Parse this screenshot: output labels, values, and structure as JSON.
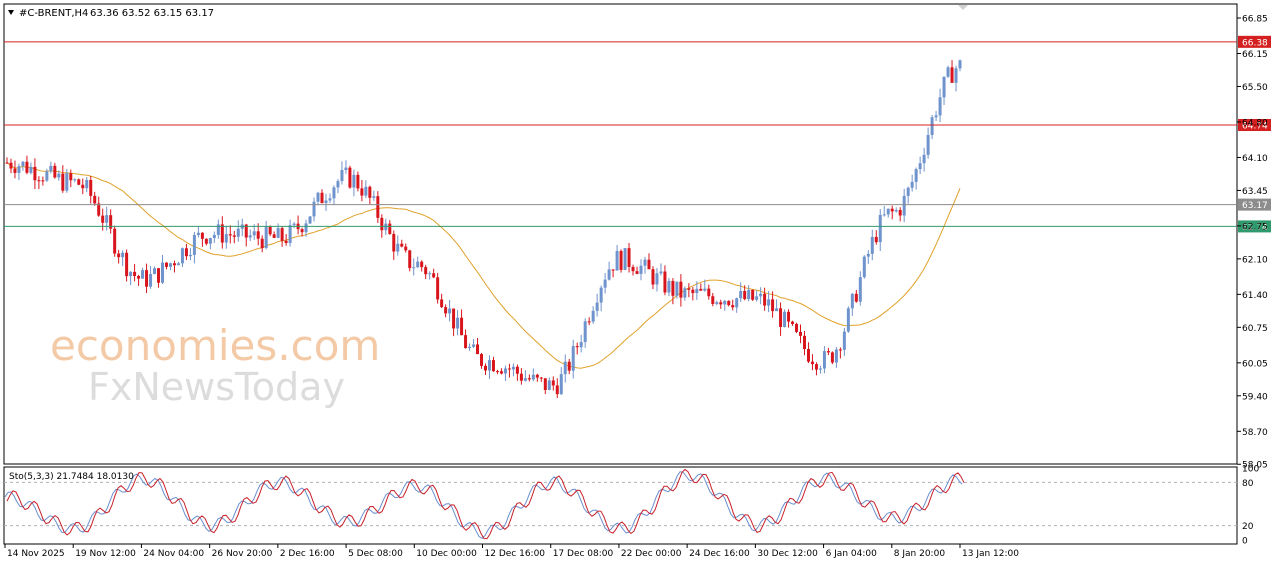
{
  "header": {
    "symbol": "#C-BRENT,H4",
    "ohlc": "63.36 63.52 63.15 63.17"
  },
  "watermark": {
    "line1": "economies.com",
    "line2": "FxNewsToday"
  },
  "price_axis": {
    "ticks": [
      "66.85",
      "66.15",
      "65.50",
      "64.80",
      "64.10",
      "63.45",
      "62.75",
      "62.10",
      "61.40",
      "60.75",
      "60.05",
      "59.40",
      "58.70",
      "58.05"
    ]
  },
  "time_axis": {
    "labels": [
      "14 Nov 2025",
      "19 Nov 12:00",
      "24 Nov 04:00",
      "26 Nov 20:00",
      "2 Dec 16:00",
      "5 Dec 08:00",
      "10 Dec 00:00",
      "12 Dec 16:00",
      "17 Dec 08:00",
      "22 Dec 00:00",
      "24 Dec 16:00",
      "30 Dec 12:00",
      "6 Jan 04:00",
      "8 Jan 20:00",
      "13 Jan 12:00"
    ]
  },
  "colors": {
    "bull": "#6f93cc",
    "bear": "#d8151d",
    "ma": "#e0a12a",
    "resistance": "#d42020",
    "support": "#2f9a6b",
    "current": "#8c8c8c",
    "stoch_main": "#6a8fd0",
    "stoch_signal": "#c8202a"
  },
  "levels": [
    {
      "label": "66.38",
      "price": 66.38,
      "kind": "resistance"
    },
    {
      "label": "64.74",
      "price": 64.74,
      "kind": "resistance"
    },
    {
      "label": "63.17",
      "price": 63.17,
      "kind": "current"
    },
    {
      "label": "62.74",
      "price": 62.74,
      "kind": "support"
    }
  ],
  "stochastic": {
    "title": "Sto(5,3,3) 21.7484 18.0130",
    "scale": [
      "100",
      "80",
      "20",
      "0"
    ]
  },
  "chart_data": {
    "type": "line",
    "title": "",
    "ylim": [
      58.0,
      66.9
    ],
    "x": [
      "14 Nov 2025",
      "19 Nov 12:00",
      "24 Nov 04:00",
      "26 Nov 20:00",
      "2 Dec 16:00",
      "5 Dec 08:00",
      "10 Dec 00:00",
      "12 Dec 16:00",
      "17 Dec 08:00",
      "22 Dec 00:00",
      "24 Dec 16:00",
      "30 Dec 12:00",
      "6 Jan 04:00",
      "8 Jan 20:00",
      "13 Jan 12:00"
    ],
    "series": [
      {
        "values": [
          64.0,
          63.6,
          61.7,
          62.6,
          62.5,
          63.7,
          62.0,
          60.1,
          59.6,
          62.1,
          61.4,
          61.3,
          60.1,
          63.0,
          65.9
        ]
      }
    ],
    "stochastic_series": [
      {
        "values": [
          60,
          15,
          85,
          20,
          80,
          25,
          75,
          10,
          80,
          15,
          90,
          20,
          85,
          30,
          85
        ]
      }
    ],
    "grid": false
  }
}
